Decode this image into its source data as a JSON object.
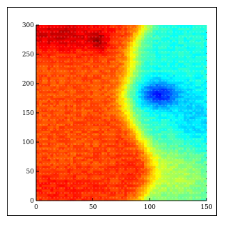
{
  "chart_data": {
    "type": "heatmap",
    "title": "",
    "xlabel": "",
    "ylabel": "",
    "xlim": [
      0,
      150
    ],
    "ylim": [
      0,
      300
    ],
    "x_ticks": [
      0,
      50,
      100,
      150
    ],
    "y_ticks": [
      0,
      50,
      100,
      150,
      200,
      250,
      300
    ],
    "x_tick_labels": [
      "0",
      "50",
      "100",
      "150"
    ],
    "y_tick_labels": [
      "0",
      "50",
      "100",
      "150",
      "200",
      "250",
      "300"
    ],
    "colormap": "jet",
    "grid": false,
    "value_range_estimated": [
      0,
      1
    ],
    "dominant_regions": [
      {
        "region": "left half (x 0-75)",
        "level": "high (orange-red)",
        "value": 0.82
      },
      {
        "region": "top-left corner (x 0-60, y 250-300)",
        "level": "highest (red)",
        "value": 0.95
      },
      {
        "region": "red patch near x 55, y 270",
        "level": "highest (dark red)",
        "value": 0.97
      },
      {
        "region": "central tongue (x 65-95, y 110-210)",
        "level": "high (orange-red)",
        "value": 0.85
      },
      {
        "region": "right half (x 100-150)",
        "level": "low (cyan)",
        "value": 0.38
      },
      {
        "region": "deep blue spot (x 95-120, y 165-205)",
        "level": "lowest (blue)",
        "value": 0.18
      },
      {
        "region": "lower-right (x 95-150, y 0-100)",
        "level": "medium (green-yellow)",
        "value": 0.55
      }
    ]
  }
}
